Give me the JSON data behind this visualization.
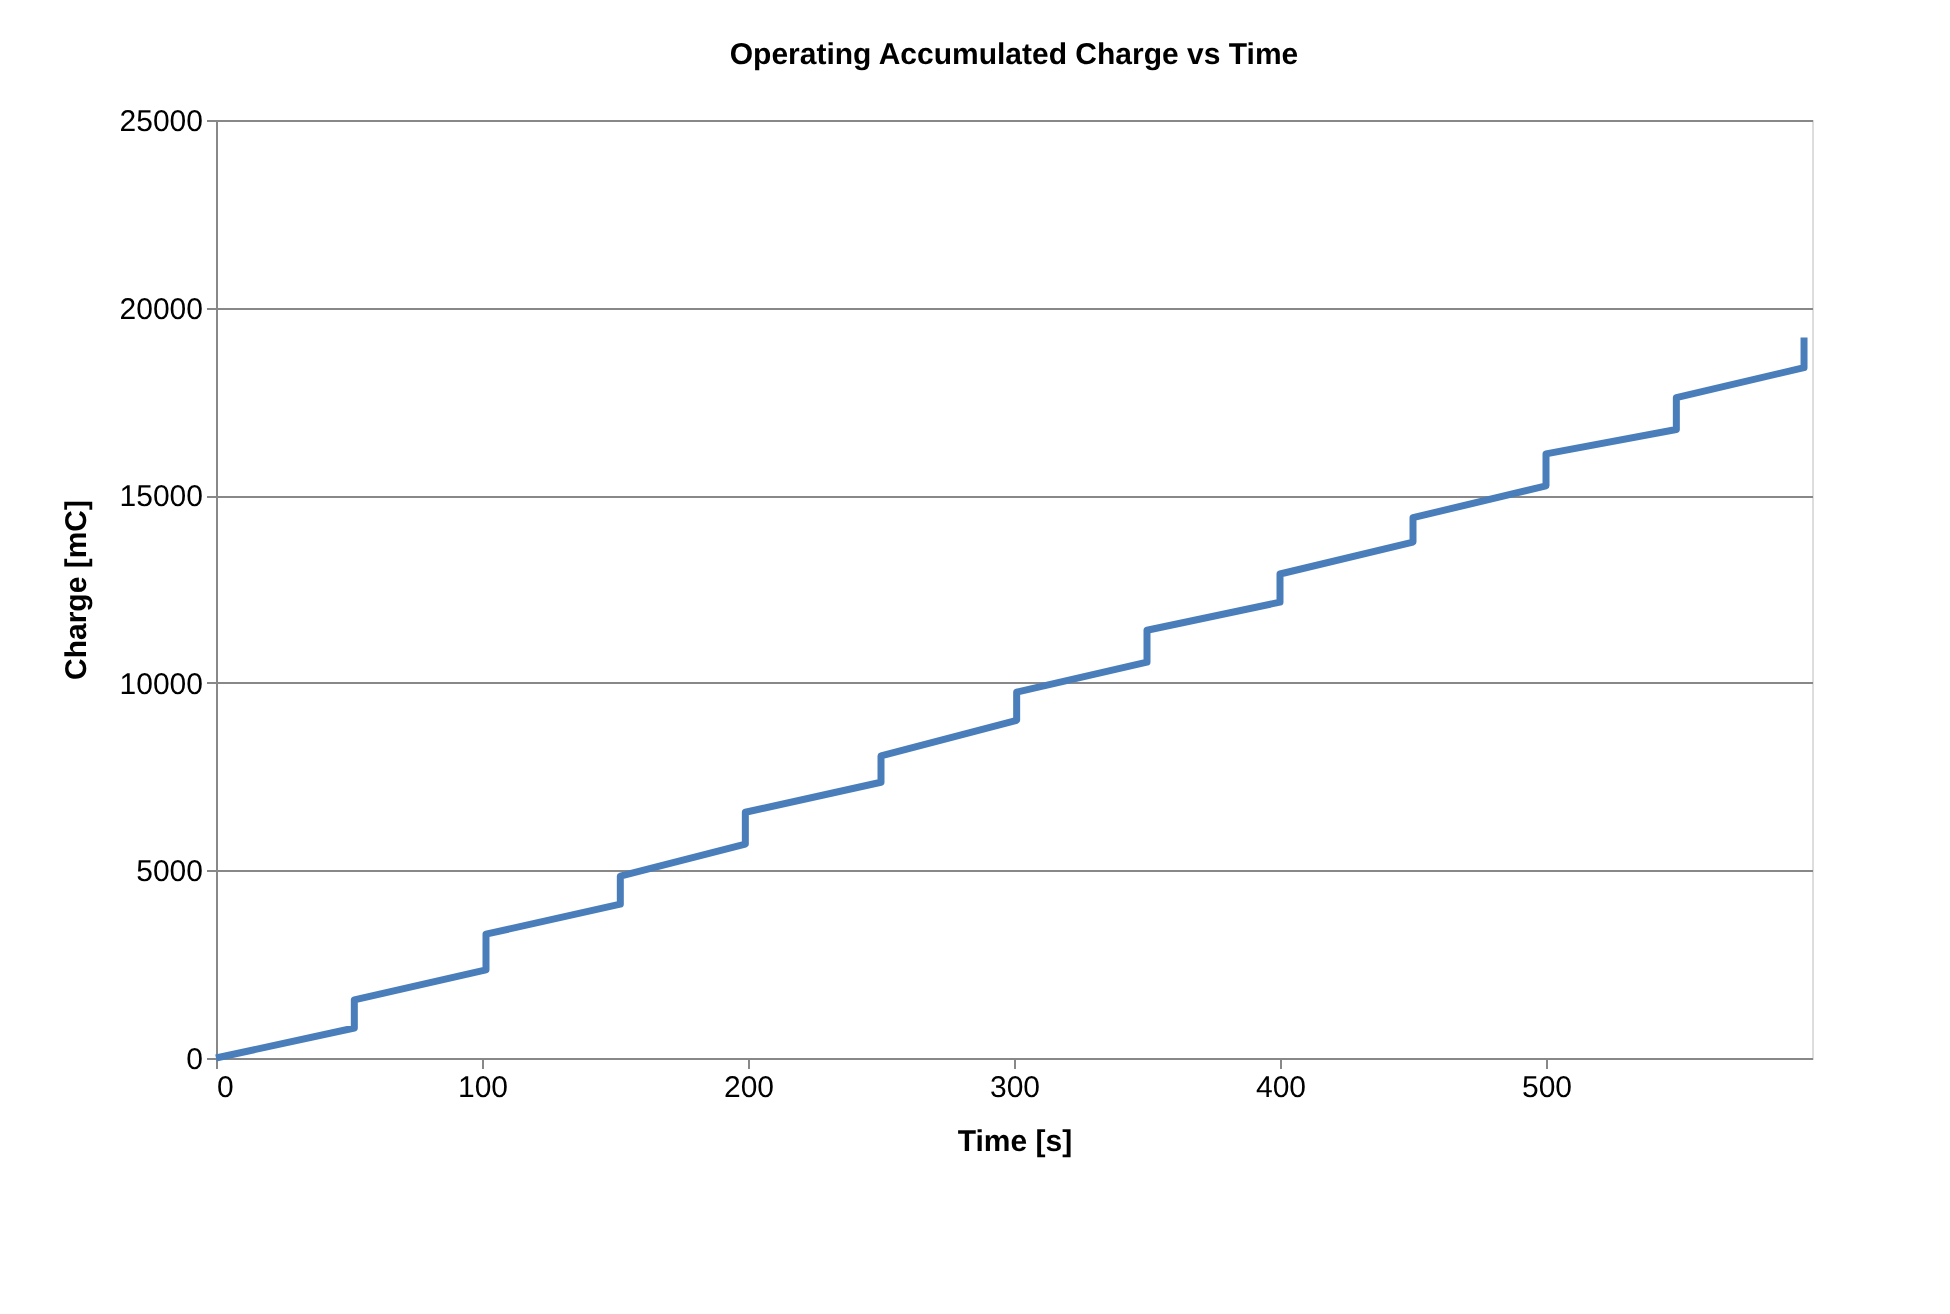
{
  "chart_data": {
    "type": "line",
    "title": "Operating Accumulated Charge vs Time",
    "xlabel": "Time [s]",
    "ylabel": "Charge [mC]",
    "series": [
      {
        "color": "#4a7ebb",
        "x": [
          0,
          52,
          52,
          101.5,
          101.5,
          152,
          152,
          199,
          199,
          250,
          250,
          301,
          301,
          350,
          350,
          400,
          400,
          450,
          450,
          500,
          500,
          549,
          549,
          597,
          597
        ],
        "values": [
          0,
          800,
          1550,
          2350,
          3300,
          4100,
          4850,
          5700,
          6550,
          7350,
          8050,
          9000,
          9750,
          10550,
          11400,
          12150,
          12900,
          13750,
          14400,
          15250,
          16100,
          16750,
          17600,
          18400,
          19200
        ]
      }
    ],
    "xlim": [
      0,
      600
    ],
    "xticks": [
      0,
      100,
      200,
      300,
      400,
      500
    ],
    "ylim": [
      0,
      25000
    ],
    "yticks": [
      0,
      5000,
      10000,
      15000,
      20000,
      25000
    ],
    "grid": "y",
    "legend": false,
    "marker": "none",
    "line_style": "solid"
  }
}
